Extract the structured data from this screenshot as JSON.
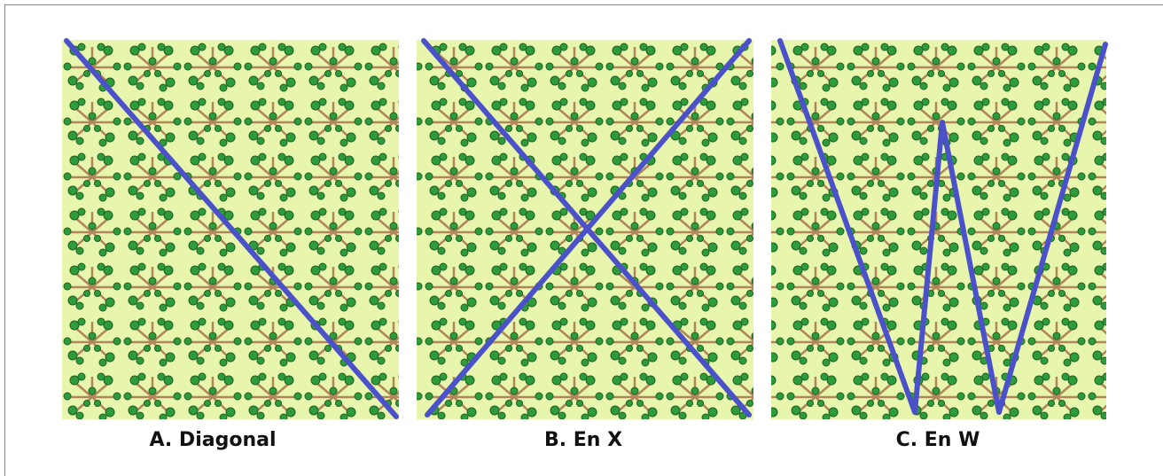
{
  "panels": [
    {
      "label": "A. Diagonal"
    },
    {
      "label": "B. En X"
    },
    {
      "label": "C. En W"
    }
  ]
}
